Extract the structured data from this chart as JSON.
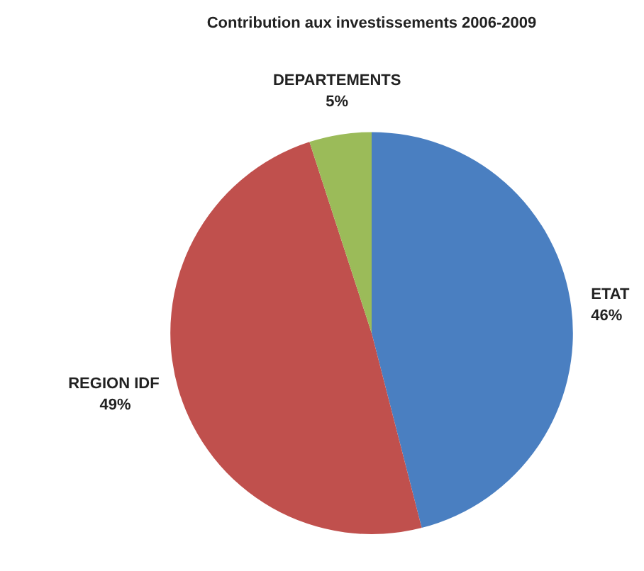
{
  "chart_data": {
    "type": "pie",
    "title": "Contribution aux investissements 2006-2009",
    "categories": [
      "ETAT",
      "REGION IDF",
      "DEPARTEMENTS"
    ],
    "values": [
      46,
      49,
      5
    ],
    "value_labels": [
      "46%",
      "49%",
      "5%"
    ],
    "colors": [
      "#4a7fc1",
      "#c0504d",
      "#9bbb59"
    ],
    "legend": false
  }
}
